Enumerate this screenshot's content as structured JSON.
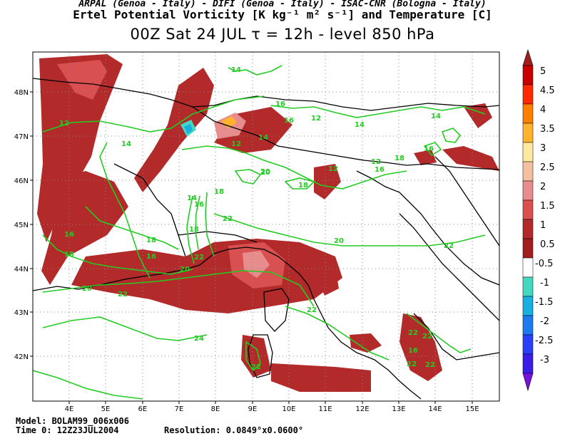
{
  "header": {
    "line1": "ARPAL (Genoa - Italy)  -  DIFI (Genoa - Italy)  -  ISAC-CNR (Bologna - Italy)",
    "line2": "Ertel Potential Vorticity [K kg⁻¹ m² s⁻¹] and Temperature [C]",
    "line3": "00Z Sat 24 JUL  τ = 12h  -  level 850 hPa"
  },
  "footer": {
    "model": "Model: BOLAM99_006x006",
    "time": "Time 0: 12Z23JUL2004",
    "resolution": "Resolution: 0.0849°x0.0600°"
  },
  "axes": {
    "x_ticks": [
      "4E",
      "5E",
      "6E",
      "7E",
      "8E",
      "9E",
      "10E",
      "11E",
      "12E",
      "13E",
      "14E",
      "15E"
    ],
    "y_ticks": [
      "48N",
      "47N",
      "46N",
      "45N",
      "44N",
      "43N",
      "42N"
    ]
  },
  "colorbar": {
    "labels": [
      "5",
      "4.5",
      "4",
      "3.5",
      "3",
      "2.5",
      "2",
      "1.5",
      "1",
      "0.5",
      "-0.5",
      "-1",
      "-1.5",
      "-2",
      "-2.5",
      "-3"
    ],
    "colors": [
      "#a21d1d",
      "#c80000",
      "#ff2a00",
      "#ff7f00",
      "#ffb22c",
      "#ffe9a0",
      "#f4c0a0",
      "#e88d8d",
      "#d85050",
      "#b22a2a",
      "#ffffff",
      "#44d8c0",
      "#17b0e0",
      "#1f7af0",
      "#2a40f8",
      "#3a1ee8",
      "#7a10e0"
    ]
  },
  "contour_labels": [
    "14",
    "12",
    "16",
    "14",
    "12",
    "14",
    "12",
    "12",
    "14",
    "16",
    "14",
    "16",
    "18",
    "16",
    "12",
    "20",
    "18",
    "18",
    "16",
    "14",
    "16",
    "18",
    "22",
    "18",
    "16",
    "18",
    "20",
    "20",
    "22",
    "22",
    "22",
    "20",
    "22",
    "24",
    "22",
    "22",
    "22",
    "16",
    "22",
    "22",
    "20"
  ],
  "colors": {
    "contour": "#22cc22",
    "coast": "#000000",
    "pv_dark": "#b22a2a",
    "pv_mid": "#d85050",
    "pv_light": "#e88d8d"
  }
}
